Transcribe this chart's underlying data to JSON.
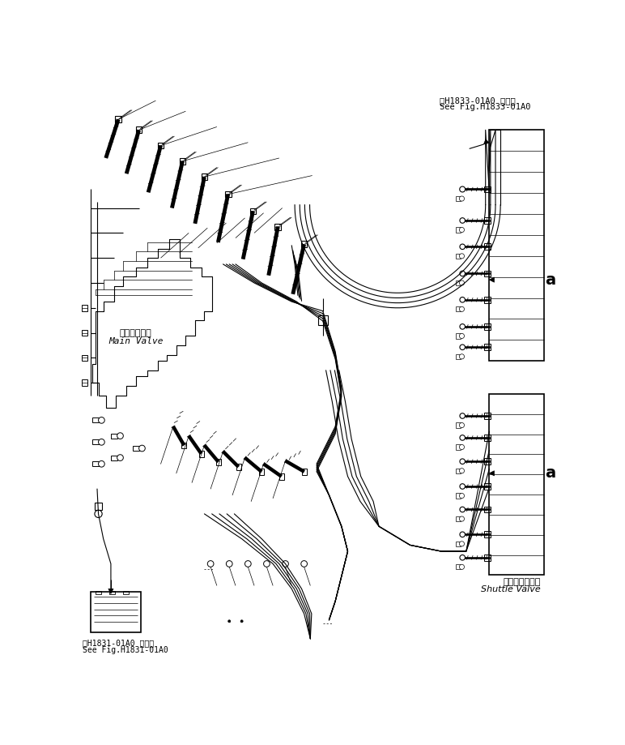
{
  "title_top_right_jp": "第H1833-01A0 図参照",
  "title_top_right_en": "See Fig.H1833-01A0",
  "title_bottom_left_jp": "第H1831-01A0 図参照",
  "title_bottom_left_en": "See Fig.H1831-01A0",
  "label_main_valve_jp": "メインバルブ",
  "label_main_valve_en": "Main Valve",
  "label_shuttle_valve_jp": "シャトルバルブ",
  "label_shuttle_valve_en": "Shuttle Valve",
  "label_a": "a",
  "bg_color": "#ffffff",
  "line_color": "#000000"
}
